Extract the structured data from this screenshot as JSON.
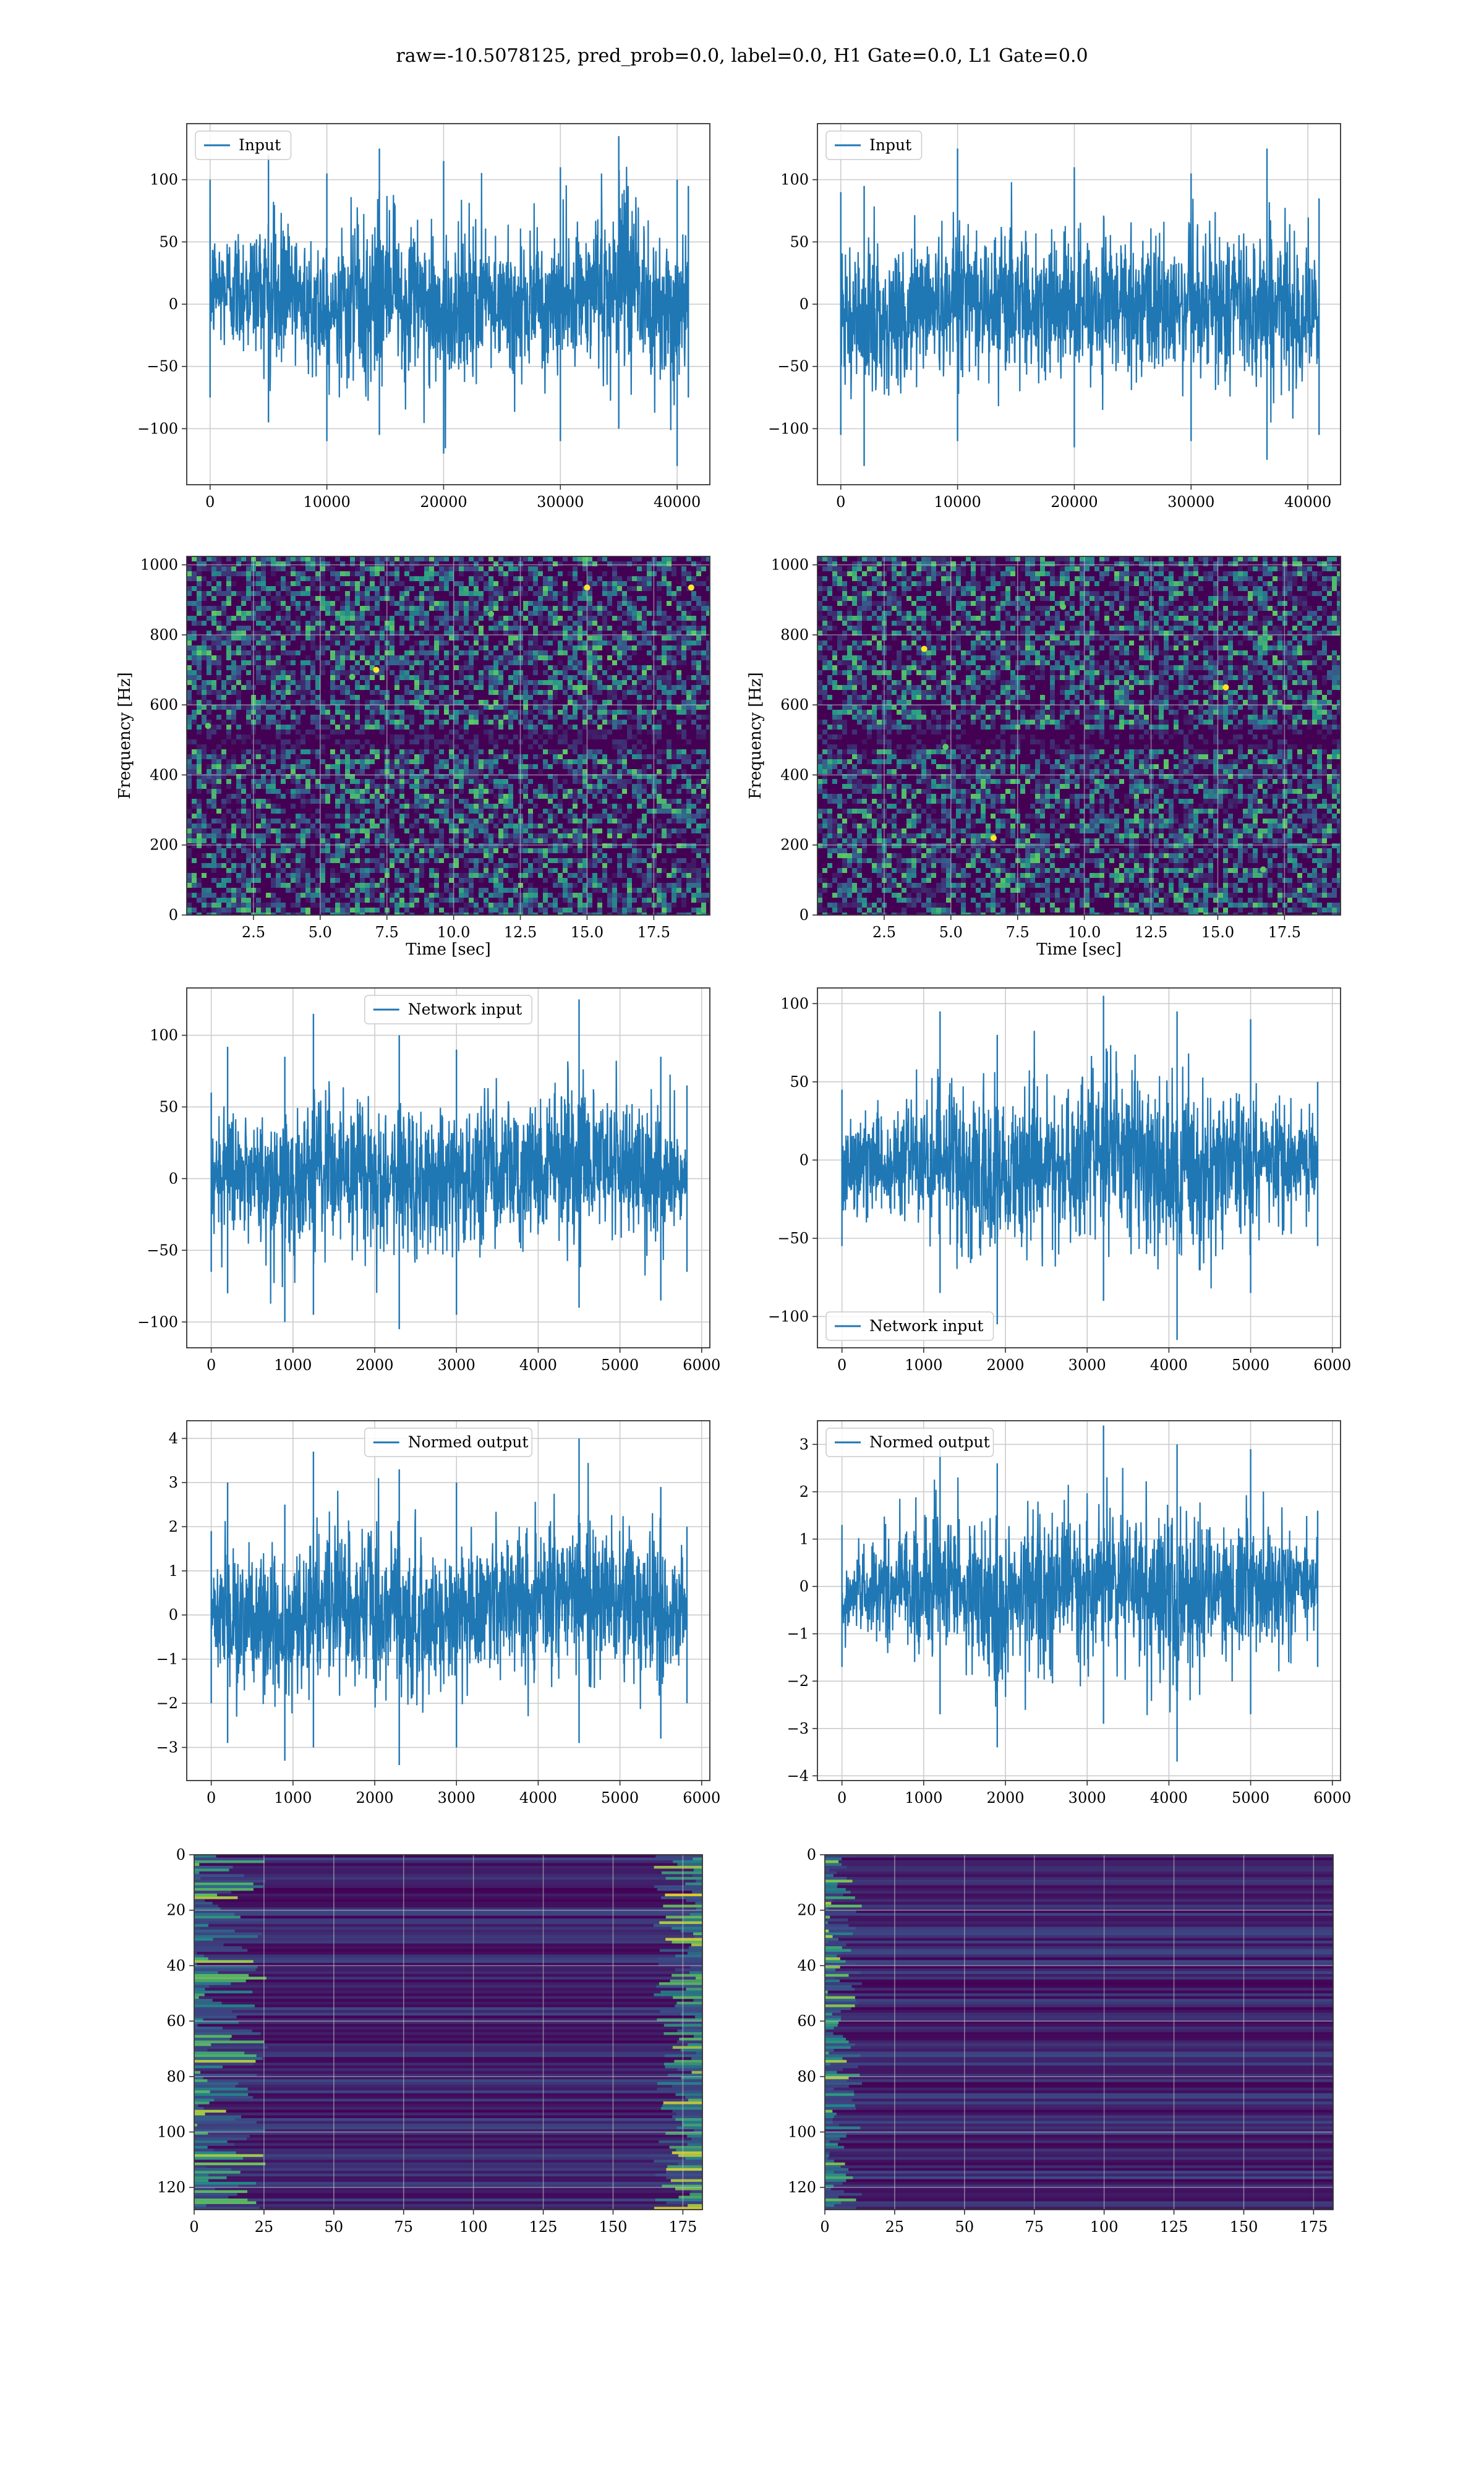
{
  "figure": {
    "suptitle": "raw=-10.5078125, pred_prob=0.0, label=0.0, H1 Gate=0.0, L1 Gate=0.0"
  },
  "colors": {
    "signal": "#1f77b4",
    "grid": "#cccccc",
    "frame": "#333333",
    "colormap": [
      "#440154",
      "#3b528b",
      "#21918c",
      "#5ec962",
      "#fde725"
    ]
  },
  "chart_data": [
    {
      "id": "h1-input",
      "type": "line",
      "legend": [
        "Input"
      ],
      "legend_loc": "upper-left",
      "xlim": [
        -2000,
        42800
      ],
      "ylim": [
        -145,
        145
      ],
      "xticks": [
        0,
        10000,
        20000,
        30000,
        40000
      ],
      "yticks": [
        -100,
        -50,
        0,
        50,
        100
      ],
      "samples": 40960,
      "envelope": [
        {
          "x": 0,
          "min": -75,
          "max": 100
        },
        {
          "x": 5000,
          "min": -95,
          "max": 120
        },
        {
          "x": 10000,
          "min": -110,
          "max": 105
        },
        {
          "x": 14500,
          "min": -105,
          "max": 125
        },
        {
          "x": 20000,
          "min": -120,
          "max": 115
        },
        {
          "x": 30000,
          "min": -110,
          "max": 110
        },
        {
          "x": 35000,
          "min": -100,
          "max": 135
        },
        {
          "x": 40000,
          "min": -130,
          "max": 100
        },
        {
          "x": 40960,
          "min": -75,
          "max": 95
        }
      ]
    },
    {
      "id": "l1-input",
      "type": "line",
      "legend": [
        "Input"
      ],
      "legend_loc": "upper-left",
      "xlim": [
        -2000,
        42800
      ],
      "ylim": [
        -145,
        145
      ],
      "xticks": [
        0,
        10000,
        20000,
        30000,
        40000
      ],
      "yticks": [
        -100,
        -50,
        0,
        50,
        100
      ],
      "samples": 40960,
      "envelope": [
        {
          "x": 0,
          "min": -105,
          "max": 90
        },
        {
          "x": 2000,
          "min": -130,
          "max": 95
        },
        {
          "x": 10000,
          "min": -110,
          "max": 125
        },
        {
          "x": 20000,
          "min": -115,
          "max": 110
        },
        {
          "x": 30000,
          "min": -110,
          "max": 105
        },
        {
          "x": 36500,
          "min": -125,
          "max": 125
        },
        {
          "x": 40960,
          "min": -105,
          "max": 85
        }
      ]
    },
    {
      "id": "h1-spectrogram",
      "type": "heatmap",
      "xlabel": "Time [sec]",
      "ylabel": "Frequency [Hz]",
      "xlim": [
        0,
        19.6
      ],
      "ylim": [
        0,
        1024
      ],
      "xticks": [
        2.5,
        5.0,
        7.5,
        10.0,
        12.5,
        15.0,
        17.5
      ],
      "xtick_labels": [
        "2.5",
        "5.0",
        "7.5",
        "10.0",
        "12.5",
        "15.0",
        "17.5"
      ],
      "yticks": [
        0,
        200,
        400,
        600,
        800,
        1000
      ],
      "colormap": "viridis",
      "dark_band_hz": 500,
      "bright_spots": [
        {
          "t": 15.0,
          "f": 935
        },
        {
          "t": 6.2,
          "f": 680
        },
        {
          "t": 7.1,
          "f": 700
        },
        {
          "t": 0.8,
          "f": 540
        },
        {
          "t": 18.9,
          "f": 935
        },
        {
          "t": 11.4,
          "f": 860
        }
      ]
    },
    {
      "id": "l1-spectrogram",
      "type": "heatmap",
      "xlabel": "Time [sec]",
      "ylabel": "Frequency [Hz]",
      "xlim": [
        0,
        19.6
      ],
      "ylim": [
        0,
        1024
      ],
      "xticks": [
        2.5,
        5.0,
        7.5,
        10.0,
        12.5,
        15.0,
        17.5
      ],
      "xtick_labels": [
        "2.5",
        "5.0",
        "7.5",
        "10.0",
        "12.5",
        "15.0",
        "17.5"
      ],
      "yticks": [
        0,
        200,
        400,
        600,
        800,
        1000
      ],
      "colormap": "viridis",
      "dark_band_hz": 500,
      "bright_spots": [
        {
          "t": 15.3,
          "f": 650
        },
        {
          "t": 16.7,
          "f": 130
        },
        {
          "t": 4.0,
          "f": 760
        },
        {
          "t": 4.8,
          "f": 480
        },
        {
          "t": 6.6,
          "f": 220
        },
        {
          "t": 9.2,
          "f": 880
        }
      ]
    },
    {
      "id": "h1-network-input",
      "type": "line",
      "legend": [
        "Network input"
      ],
      "legend_loc": "upper-center",
      "xlim": [
        -300,
        6100
      ],
      "ylim": [
        -118,
        133
      ],
      "xticks": [
        0,
        1000,
        2000,
        3000,
        4000,
        5000,
        6000
      ],
      "yticks": [
        -100,
        -50,
        0,
        50,
        100
      ],
      "samples": 5820,
      "envelope": [
        {
          "x": 0,
          "min": -65,
          "max": 60
        },
        {
          "x": 200,
          "min": -80,
          "max": 92
        },
        {
          "x": 900,
          "min": -100,
          "max": 85
        },
        {
          "x": 1250,
          "min": -95,
          "max": 115
        },
        {
          "x": 2300,
          "min": -105,
          "max": 100
        },
        {
          "x": 3000,
          "min": -95,
          "max": 90
        },
        {
          "x": 4500,
          "min": -90,
          "max": 125
        },
        {
          "x": 5500,
          "min": -85,
          "max": 85
        },
        {
          "x": 5820,
          "min": -65,
          "max": 65
        }
      ]
    },
    {
      "id": "l1-network-input",
      "type": "line",
      "legend": [
        "Network input"
      ],
      "legend_loc": "lower-left",
      "xlim": [
        -300,
        6100
      ],
      "ylim": [
        -120,
        110
      ],
      "xticks": [
        0,
        1000,
        2000,
        3000,
        4000,
        5000,
        6000
      ],
      "yticks": [
        -100,
        -50,
        0,
        50,
        100
      ],
      "samples": 5820,
      "envelope": [
        {
          "x": 0,
          "min": -55,
          "max": 45
        },
        {
          "x": 1200,
          "min": -85,
          "max": 95
        },
        {
          "x": 1900,
          "min": -105,
          "max": 80
        },
        {
          "x": 3200,
          "min": -90,
          "max": 105
        },
        {
          "x": 4100,
          "min": -115,
          "max": 95
        },
        {
          "x": 5000,
          "min": -85,
          "max": 90
        },
        {
          "x": 5820,
          "min": -55,
          "max": 50
        }
      ]
    },
    {
      "id": "h1-normed-output",
      "type": "line",
      "legend": [
        "Normed output"
      ],
      "legend_loc": "upper-center",
      "xlim": [
        -300,
        6100
      ],
      "ylim": [
        -3.75,
        4.4
      ],
      "xticks": [
        0,
        1000,
        2000,
        3000,
        4000,
        5000,
        6000
      ],
      "yticks": [
        -3,
        -2,
        -1,
        0,
        1,
        2,
        3,
        4
      ],
      "samples": 5820,
      "envelope": [
        {
          "x": 0,
          "min": -2.0,
          "max": 1.9
        },
        {
          "x": 200,
          "min": -2.9,
          "max": 3.0
        },
        {
          "x": 900,
          "min": -3.3,
          "max": 2.5
        },
        {
          "x": 1250,
          "min": -3.0,
          "max": 3.7
        },
        {
          "x": 2300,
          "min": -3.4,
          "max": 3.3
        },
        {
          "x": 3000,
          "min": -3.0,
          "max": 3.0
        },
        {
          "x": 4500,
          "min": -2.9,
          "max": 4.0
        },
        {
          "x": 5500,
          "min": -2.8,
          "max": 2.9
        },
        {
          "x": 5820,
          "min": -2.0,
          "max": 2.0
        }
      ]
    },
    {
      "id": "l1-normed-output",
      "type": "line",
      "legend": [
        "Normed output"
      ],
      "legend_loc": "upper-left",
      "xlim": [
        -300,
        6100
      ],
      "ylim": [
        -4.1,
        3.5
      ],
      "xticks": [
        0,
        1000,
        2000,
        3000,
        4000,
        5000,
        6000
      ],
      "yticks": [
        -4,
        -3,
        -2,
        -1,
        0,
        1,
        2,
        3
      ],
      "samples": 5820,
      "envelope": [
        {
          "x": 0,
          "min": -1.7,
          "max": 1.3
        },
        {
          "x": 1200,
          "min": -2.7,
          "max": 3.0
        },
        {
          "x": 1900,
          "min": -3.4,
          "max": 2.6
        },
        {
          "x": 3200,
          "min": -2.9,
          "max": 3.4
        },
        {
          "x": 4100,
          "min": -3.7,
          "max": 3.0
        },
        {
          "x": 5000,
          "min": -2.7,
          "max": 2.9
        },
        {
          "x": 5820,
          "min": -1.7,
          "max": 1.6
        }
      ]
    },
    {
      "id": "h1-feature-map",
      "type": "heatmap",
      "xlim": [
        0,
        182
      ],
      "ylim": [
        0,
        128
      ],
      "y_inverted": true,
      "xticks": [
        0,
        25,
        50,
        75,
        100,
        125,
        150,
        175
      ],
      "yticks": [
        0,
        20,
        40,
        60,
        80,
        100,
        120
      ],
      "colormap": "viridis",
      "bright_edges": [
        "left",
        "right"
      ]
    },
    {
      "id": "l1-feature-map",
      "type": "heatmap",
      "xlim": [
        0,
        182
      ],
      "ylim": [
        0,
        128
      ],
      "y_inverted": true,
      "xticks": [
        0,
        25,
        50,
        75,
        100,
        125,
        150,
        175
      ],
      "yticks": [
        0,
        20,
        40,
        60,
        80,
        100,
        120
      ],
      "colormap": "viridis",
      "bright_edges": [
        "left"
      ]
    }
  ]
}
